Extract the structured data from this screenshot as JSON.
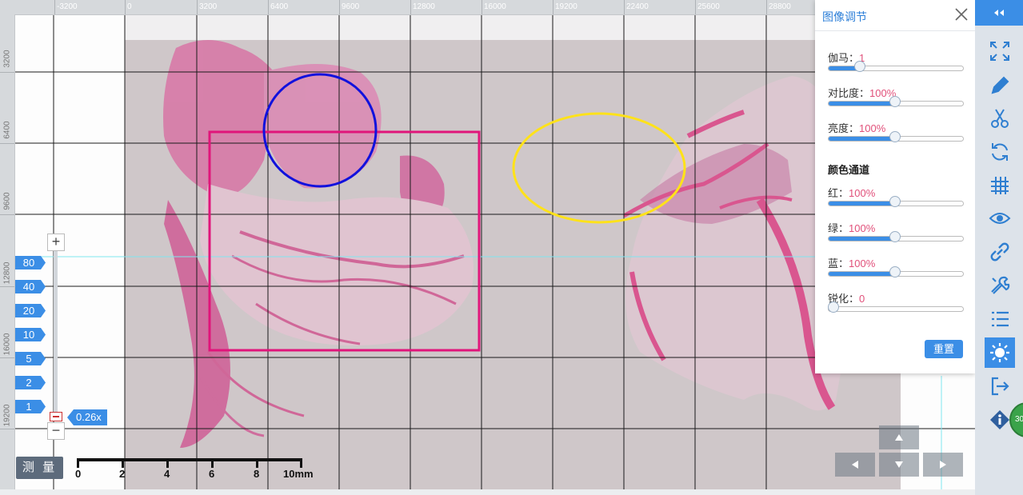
{
  "ruler": {
    "top_ticks": [
      "-3200",
      "0",
      "3200",
      "6400",
      "9600",
      "12800",
      "16000",
      "19200",
      "22400",
      "25600",
      "28800"
    ],
    "left_ticks": [
      "3200",
      "6400",
      "9600",
      "12800",
      "16000",
      "19200"
    ]
  },
  "annotations": {
    "rectangle_color": "#e0157a",
    "circle_color": "#1111dd",
    "ellipse_color": "#ffe21a"
  },
  "adjust_panel": {
    "title": "图像调节",
    "close_icon": "close-icon",
    "sliders": [
      {
        "label": "伽马：",
        "value": "1",
        "fraction": 0.24
      },
      {
        "label": "对比度：",
        "value": "100%",
        "fraction": 0.5
      },
      {
        "label": "亮度：",
        "value": "100%",
        "fraction": 0.5
      }
    ],
    "color_section": "颜色通道",
    "color_sliders": [
      {
        "label": "红：",
        "value": "100%",
        "fraction": 0.5
      },
      {
        "label": "绿：",
        "value": "100%",
        "fraction": 0.5
      },
      {
        "label": "蓝：",
        "value": "100%",
        "fraction": 0.5
      }
    ],
    "sharpen": {
      "label": "锐化：",
      "value": "0",
      "fraction": 0.0
    },
    "reset_label": "重置"
  },
  "toolbar": {
    "collapse_icon": "double-chevron-left-icon",
    "tools": [
      "fullscreen-icon",
      "pencil-icon",
      "scissors-icon",
      "rotate-icon",
      "grid-icon",
      "eye-icon",
      "link-icon",
      "tools-icon",
      "list-icon",
      "brightness-icon",
      "export-icon",
      "info-icon"
    ],
    "active_tool": "brightness-icon",
    "status_badge": "30"
  },
  "zoom": {
    "plus": "+",
    "minus": "−",
    "levels": [
      "80",
      "40",
      "20",
      "10",
      "5",
      "2",
      "1"
    ],
    "current": "0.26x"
  },
  "measure_label": "测 量",
  "scale_bar": {
    "labels": [
      "0",
      "2",
      "4",
      "6",
      "8",
      "10mm"
    ]
  },
  "colors": {
    "accent": "#3b8ee6",
    "value_pink": "#e1507a",
    "tissue": "#d94e92"
  }
}
